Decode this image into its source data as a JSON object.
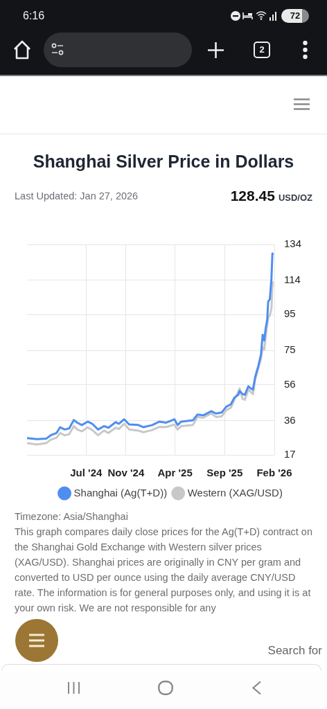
{
  "chart_data": {
    "type": "line",
    "title": "Shanghai Silver Price in Dollars",
    "subtitle": "Last Updated: Jan 27, 2026",
    "annotations": [
      "6:16",
      "72",
      "2",
      "128.45 USD/OZ",
      "Timezone: Asia/Shanghai",
      "This graph compares daily close prices for the Ag(T+D) contract on the Shanghai Gold Exchange with Western silver prices (XAG/USD). Shanghai prices are originally in CNY per gram and converted to USD per ounce using the daily average CNY/USD rate. The information is for general purposes only, and using it is at your own risk. We are not responsible for any",
      "Search for"
    ],
    "x": [
      "2024-01-01",
      "2024-01-31",
      "2024-02-29",
      "2024-03-14",
      "2024-04-01",
      "2024-04-12",
      "2024-04-26",
      "2024-05-10",
      "2024-05-24",
      "2024-06-04",
      "2024-06-18",
      "2024-07-06",
      "2024-07-20",
      "2024-08-07",
      "2024-08-25",
      "2024-09-08",
      "2024-09-30",
      "2024-10-10",
      "2024-10-26",
      "2024-11-11",
      "2024-12-09",
      "2024-12-24",
      "2025-01-21",
      "2025-02-12",
      "2025-03-05",
      "2025-03-30",
      "2025-04-09",
      "2025-04-20",
      "2025-05-26",
      "2025-06-09",
      "2025-06-27",
      "2025-07-22",
      "2025-08-05",
      "2025-08-23",
      "2025-09-06",
      "2025-09-20",
      "2025-10-01",
      "2025-10-13",
      "2025-10-17",
      "2025-10-26",
      "2025-11-02",
      "2025-11-13",
      "2025-11-20",
      "2025-11-27",
      "2025-12-04",
      "2025-12-14",
      "2025-12-22",
      "2025-12-27",
      "2026-01-01",
      "2026-01-05",
      "2026-01-10",
      "2026-01-13",
      "2026-01-18",
      "2026-01-23",
      "2026-01-26",
      "2026-01-27"
    ],
    "series": [
      {
        "name": "Shanghai (Ag(T+D))",
        "color": "#4f8ef0",
        "values": [
          26.3,
          25.8,
          26.0,
          27.9,
          29.2,
          32.4,
          31.1,
          31.7,
          36.4,
          34.9,
          33.6,
          35.5,
          34.3,
          31.1,
          33.0,
          32.1,
          35.2,
          34.3,
          36.8,
          33.9,
          33.6,
          32.4,
          33.6,
          35.5,
          34.9,
          36.8,
          33.6,
          35.5,
          36.2,
          39.4,
          39.0,
          41.3,
          40.0,
          40.6,
          43.8,
          45.1,
          48.9,
          50.4,
          52.5,
          50.8,
          50.4,
          55.2,
          54.0,
          53.3,
          60.3,
          66.7,
          73.0,
          83.8,
          80.6,
          87.0,
          92.1,
          102.2,
          103.5,
          114.9,
          128.9,
          128.5
        ]
      },
      {
        "name": "Western (XAG/USD)",
        "color": "#c8c8c8",
        "values": [
          23.5,
          22.8,
          23.5,
          25.4,
          26.6,
          29.2,
          27.9,
          28.5,
          33.0,
          31.1,
          30.1,
          32.4,
          30.8,
          27.9,
          30.5,
          29.2,
          32.1,
          31.4,
          34.3,
          31.1,
          30.5,
          29.6,
          30.8,
          32.6,
          32.5,
          33.9,
          31.1,
          33.0,
          33.6,
          38.1,
          37.7,
          40.0,
          38.1,
          38.5,
          41.9,
          43.2,
          47.6,
          52.2,
          53.9,
          48.2,
          47.6,
          53.3,
          52.1,
          50.8,
          59.0,
          65.4,
          70.5,
          76.8,
          75.6,
          81.9,
          89.5,
          93.3,
          94.6,
          98.4,
          111.1,
          113.0
        ]
      }
    ],
    "xlim": [
      "2024-01-01",
      "2026-02-01"
    ],
    "xticks": [
      {
        "value": "2024-07-01",
        "label": "Jul '24"
      },
      {
        "value": "2024-11-01",
        "label": "Nov '24"
      },
      {
        "value": "2025-04-01",
        "label": "Apr '25"
      },
      {
        "value": "2025-09-01",
        "label": "Sep '25"
      },
      {
        "value": "2026-02-01",
        "label": "Feb '26"
      }
    ],
    "ylim": [
      17,
      134
    ],
    "yticks": [
      17,
      36,
      56,
      75,
      95,
      114,
      134
    ],
    "grid": true,
    "legend": "bottom",
    "marker": "none",
    "line_style": "solid"
  }
}
